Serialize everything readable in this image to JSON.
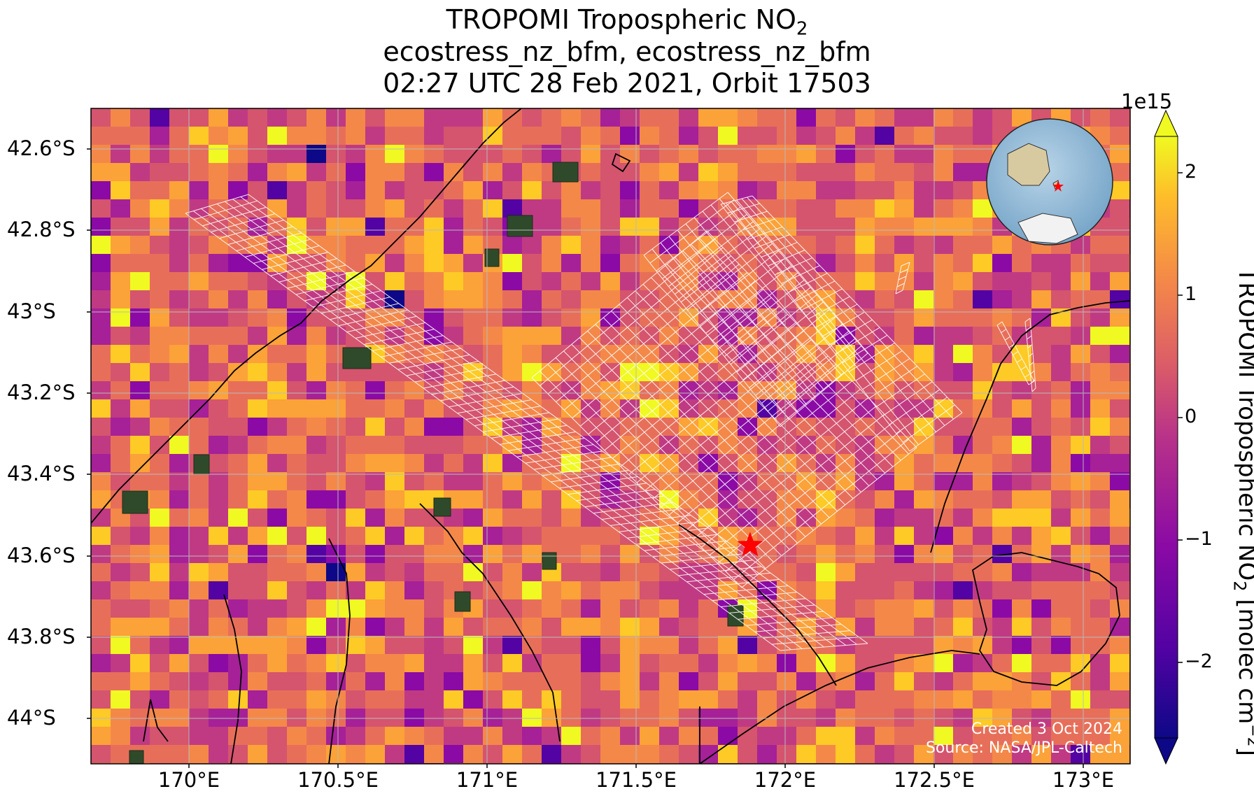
{
  "title": {
    "line1": "TROPOMI Tropospheric NO",
    "line1_sub": "2",
    "line2": "ecostress_nz_bfm, ecostress_nz_bfm",
    "line3": "02:27 UTC 28 Feb 2021, Orbit 17503"
  },
  "map": {
    "lon_range": [
      169.7,
      173.2
    ],
    "lat_range": [
      -44.15,
      -42.5
    ],
    "lat_ticks": [
      "42.6°S",
      "42.8°S",
      "43°S",
      "43.2°S",
      "43.4°S",
      "43.6°S",
      "43.8°S",
      "44°S"
    ],
    "lon_ticks": [
      "170°E",
      "170.5°E",
      "171°E",
      "171.5°E",
      "172°E",
      "172.5°E",
      "173°E"
    ],
    "marker": {
      "symbol": "red-star",
      "lon": 171.92,
      "lat": -43.6,
      "color": "#ff0000"
    },
    "grid": true,
    "inset": "globe-locator"
  },
  "colorbar": {
    "label": "TROPOMI Tropospheric NO",
    "label_sub": "2",
    "label_rest": " [molec cm",
    "label_sup": "−2",
    "label_end": "]",
    "exponent": "1e15",
    "ticks": [
      "2",
      "1",
      "0",
      "−1",
      "−2"
    ],
    "range": [
      -2.6,
      2.4
    ],
    "colormap": "plasma"
  },
  "credits": {
    "created": "Created 3 Oct 2024",
    "source": "Source: NASA/JPL-Caltech"
  },
  "chart_data": {
    "type": "heatmap",
    "variable": "Tropospheric NO2 column",
    "units": "molec cm^-2 (×1e15)",
    "value_range_typical": [
      -0.5,
      1.5
    ],
    "ecostress_footprint_outline_color": "#ffffff"
  }
}
